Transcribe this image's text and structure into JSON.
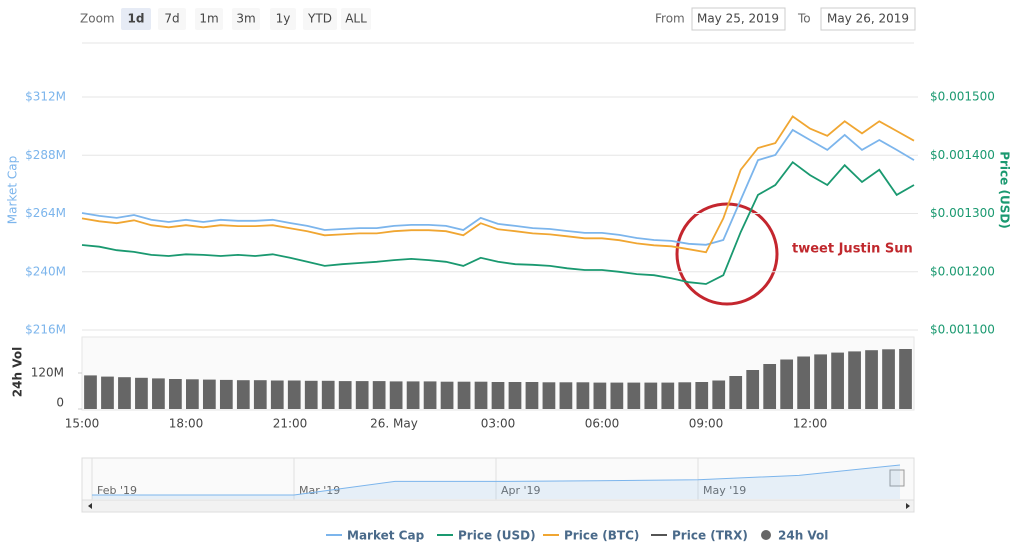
{
  "controls": {
    "zoom_label": "Zoom",
    "zoom_buttons": [
      "1d",
      "7d",
      "1m",
      "3m",
      "1y",
      "YTD",
      "ALL"
    ],
    "selected": 0,
    "from_label": "From",
    "from": "May 25, 2019",
    "to_label": "To",
    "to": "May 26, 2019"
  },
  "chart_data": [
    {
      "type": "line",
      "ylabel": "Market Cap",
      "y2label": "Price (USD)",
      "annotation": "tweet Justin Sun",
      "grid": true,
      "categories": [
        "15:00",
        null,
        null,
        null,
        null,
        null,
        "18:00",
        null,
        null,
        null,
        null,
        null,
        "21:00",
        null,
        null,
        null,
        null,
        null,
        "26. May",
        null,
        null,
        null,
        null,
        null,
        "03:00",
        null,
        null,
        null,
        null,
        null,
        "06:00",
        null,
        null,
        null,
        null,
        null,
        "09:00",
        null,
        null,
        null,
        null,
        null,
        "12:00",
        null,
        null,
        null,
        null,
        null,
        null
      ],
      "ylim": [
        216,
        312
      ],
      "yticks": [
        {
          "value": 216,
          "label": "$216M"
        },
        {
          "value": 240,
          "label": "$240M"
        },
        {
          "value": 264,
          "label": "$264M"
        },
        {
          "value": 288,
          "label": "$288M"
        },
        {
          "value": 312,
          "label": "$312M"
        }
      ],
      "y2lim": [
        0.0011,
        0.0015
      ],
      "y2ticks": [
        {
          "value": 0.0011,
          "label": "$0.001100"
        },
        {
          "value": 0.0012,
          "label": "$0.001200"
        },
        {
          "value": 0.0013,
          "label": "$0.001300"
        },
        {
          "value": 0.0014,
          "label": "$0.001400"
        },
        {
          "value": 0.0015,
          "label": "$0.001500"
        }
      ],
      "series": [
        {
          "name": "Market Cap",
          "color": "#7cb5ec",
          "values": [
            264.2,
            263,
            262.2,
            263.4,
            261.4,
            260.5,
            261.4,
            260.5,
            261.4,
            261,
            261,
            261.4,
            260.1,
            258.9,
            257.2,
            257.6,
            258,
            258,
            258.9,
            259.3,
            259.3,
            258.9,
            257.2,
            262.2,
            259.7,
            258.9,
            258,
            257.6,
            256.8,
            256,
            256,
            255.2,
            253.9,
            253.1,
            252.7,
            251.5,
            251.1,
            253.1,
            269.6,
            286,
            288.1,
            298.4,
            294.3,
            290.2,
            296.4,
            290.2,
            294.3,
            290.2,
            286
          ]
        },
        {
          "name": "Price (USD)",
          "color": "#1a9970",
          "axis": "y2",
          "values": [
            0.001246,
            0.001243,
            0.001237,
            0.001234,
            0.001229,
            0.001227,
            0.00123,
            0.001229,
            0.001227,
            0.001229,
            0.001227,
            0.00123,
            0.001224,
            0.001217,
            0.00121,
            0.001213,
            0.001215,
            0.001217,
            0.00122,
            0.001222,
            0.00122,
            0.001217,
            0.00121,
            0.001224,
            0.001217,
            0.001213,
            0.001212,
            0.00121,
            0.001206,
            0.001203,
            0.001203,
            0.0012,
            0.001196,
            0.001194,
            0.001189,
            0.001182,
            0.001179,
            0.001194,
            0.001268,
            0.001332,
            0.001349,
            0.001388,
            0.001366,
            0.001349,
            0.001383,
            0.001354,
            0.001375,
            0.001332,
            0.001349
          ]
        },
        {
          "name": "Price (BTC)",
          "color": "#f0a632",
          "values": [
            262,
            260.8,
            260,
            261.2,
            259.2,
            258.3,
            259.2,
            258.3,
            259.2,
            258.8,
            258.8,
            259.2,
            257.9,
            256.7,
            255,
            255.4,
            255.8,
            255.8,
            256.7,
            257.1,
            257.1,
            256.7,
            255,
            260,
            257.5,
            256.7,
            255.8,
            255.4,
            254.6,
            253.8,
            253.8,
            253,
            251.7,
            250.9,
            250.5,
            249.3,
            248,
            262,
            282,
            291,
            293,
            304,
            299,
            296,
            302,
            297,
            302,
            298,
            294
          ]
        },
        {
          "name": "Price (TRX)",
          "color": "#555555",
          "values": [
            null,
            null,
            null,
            null,
            null,
            null,
            null,
            null,
            null,
            null,
            null,
            null,
            null,
            null,
            null,
            null,
            null,
            null,
            null,
            null,
            null,
            null,
            null,
            null,
            null,
            null,
            null,
            null,
            null,
            null,
            null,
            null,
            null,
            null,
            null,
            null,
            null,
            null,
            null,
            null,
            null,
            null,
            null,
            null,
            null,
            null,
            null,
            null,
            null
          ]
        }
      ]
    },
    {
      "type": "bar",
      "ylabel": "24h Vol",
      "ylim": [
        0,
        240
      ],
      "yticks": [
        0,
        {
          "value": 120,
          "label": "120M"
        }
      ],
      "series": [
        {
          "name": "24h Vol",
          "color": "#666666",
          "values": [
            112,
            108,
            106,
            104,
            102,
            100,
            99,
            98,
            97,
            96,
            96,
            95,
            95,
            94,
            94,
            93,
            93,
            93,
            92,
            92,
            92,
            91,
            91,
            91,
            90,
            90,
            90,
            89,
            89,
            89,
            88,
            88,
            88,
            88,
            88,
            89,
            90,
            95,
            110,
            130,
            150,
            165,
            175,
            182,
            188,
            192,
            196,
            199,
            200
          ]
        }
      ]
    },
    {
      "type": "area",
      "color": "#7cb5ec",
      "categories": [
        "Feb '19",
        null,
        "Mar '19",
        null,
        "Apr '19",
        null,
        "May '19",
        null,
        null
      ],
      "values": [
        160,
        160,
        160,
        185,
        185,
        186,
        188,
        196,
        215
      ]
    }
  ]
}
